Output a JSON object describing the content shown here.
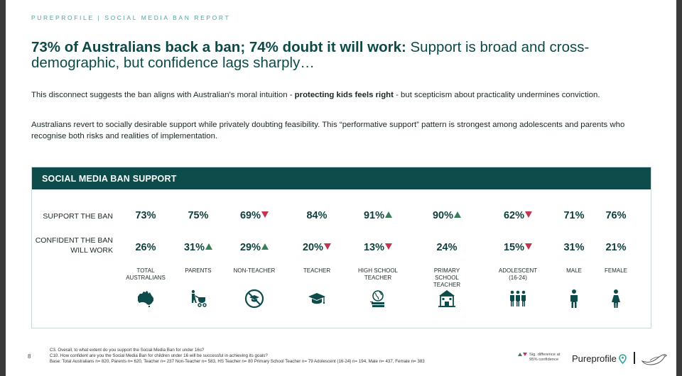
{
  "header": {
    "brand": "PUREPROFILE | SOCIAL MEDIA BAN REPORT"
  },
  "headline": {
    "bold": "73% of Australians back a ban; 74% doubt it will work:",
    "regular": " Support is broad and cross-demographic, but confidence lags sharply…"
  },
  "paragraph1": {
    "before": "This disconnect suggests the ban aligns with Australian's moral intuition - ",
    "emphasis": "protecting kids feels right",
    "after": " - but scepticism about practicality undermines conviction."
  },
  "paragraph2": "Australians revert to socially desirable support while privately doubting feasibility. This “performative support” pattern is strongest among adolescents and parents who recognise both risks and realities of implementation.",
  "panel": {
    "title": "SOCIAL MEDIA BAN SUPPORT",
    "row_labels": {
      "support": "SUPPORT THE BAN",
      "confident": "CONFIDENT THE BAN WILL WORK"
    },
    "columns": [
      {
        "label": "TOTAL AUSTRALIANS",
        "support": "73%",
        "support_sig": "",
        "confident": "26%",
        "confident_sig": "",
        "icon": "australia-map-icon"
      },
      {
        "label": "PARENTS",
        "support": "75%",
        "support_sig": "",
        "confident": "31%",
        "confident_sig": "up",
        "icon": "parent-with-stroller-icon"
      },
      {
        "label": "NON-TEACHER",
        "support": "69%",
        "support_sig": "down",
        "confident": "29%",
        "confident_sig": "up",
        "icon": "no-teacher-icon"
      },
      {
        "label": "TEACHER",
        "support": "84%",
        "support_sig": "",
        "confident": "20%",
        "confident_sig": "down",
        "icon": "graduation-cap-icon"
      },
      {
        "label": "HIGH SCHOOL TEACHER",
        "support": "91%",
        "support_sig": "up",
        "confident": "13%",
        "confident_sig": "down",
        "icon": "globe-books-icon"
      },
      {
        "label": "PRIMARY SCHOOL TEACHER",
        "support": "90%",
        "support_sig": "up",
        "confident": "24%",
        "confident_sig": "",
        "icon": "school-building-icon"
      },
      {
        "label": "ADOLESCENT (16-24)",
        "support": "62%",
        "support_sig": "down",
        "confident": "15%",
        "confident_sig": "down",
        "icon": "group-of-people-icon"
      },
      {
        "label": "MALE",
        "support": "71%",
        "support_sig": "",
        "confident": "31%",
        "confident_sig": "",
        "icon": "male-icon"
      },
      {
        "label": "FEMALE",
        "support": "76%",
        "support_sig": "",
        "confident": "21%",
        "confident_sig": "",
        "icon": "female-icon"
      }
    ]
  },
  "footer": {
    "page_number": "8",
    "notes": [
      "C3. Overall, to what extent do you support the Social Media Ban for under 16s?",
      "C10. How confident are you the Social Media Ban for children under 16 will be successful in achieving its goals?",
      "Base: Total Australians n= 820, Parents n= 620, Teacher n= 237 Non-Teacher n= 583, HS Teacher n= 80 Primary School Teacher n= 79 Adolescent (16-24) n= 194, Male n= 437, Female n= 383"
    ],
    "legend": {
      "line1": "Sig. difference at",
      "line2": "95% confidence"
    },
    "logo_text": "Pureprofile"
  },
  "colors": {
    "teal_dark": "#0d4c4a",
    "up_green": "#3a7d5a",
    "down_red": "#c2354f",
    "accent_teal": "#4fa3a0"
  }
}
